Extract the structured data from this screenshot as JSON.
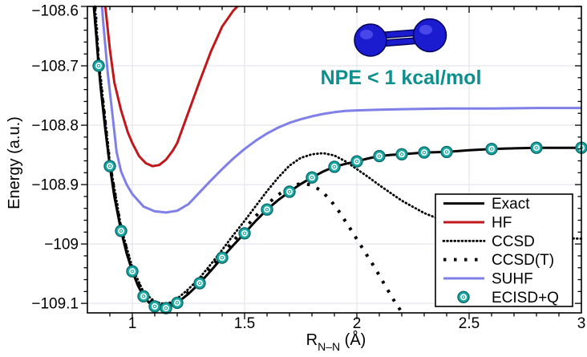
{
  "annotation": {
    "text": "NPE < 1 kcal/mol",
    "color": "#0d8f8d"
  },
  "molecule": {
    "name": "N2 molecule",
    "atom_color": "#1b1bd0",
    "atom_edge_color": "#000055",
    "highlight_color": "#5050ee",
    "bond_color": "#1b1bd0"
  },
  "chart_data": {
    "type": "line",
    "title": "",
    "xlabel": "R_N-N (A)",
    "xlabel_parts": {
      "prefix": "R",
      "sub": "N–N",
      "suffix": " (Å)"
    },
    "ylabel": "Energy (a.u.)",
    "xlim": [
      0.8,
      3.0
    ],
    "ylim": [
      -109.116,
      -108.6
    ],
    "grid": true,
    "grid_color": "#dfdfe9",
    "axis_color": "#000000",
    "background": "#ffffff",
    "legend_position": "lower right",
    "xticks": {
      "values": [
        1,
        1.5,
        2,
        2.5,
        3
      ],
      "labels": [
        "1",
        "1.5",
        "2",
        "2.5",
        "3"
      ]
    },
    "yticks": {
      "values": [
        -108.6,
        -108.7,
        -108.8,
        -108.9,
        -109,
        -109.1
      ],
      "labels": [
        "−108.6",
        "−108.7",
        "−108.8",
        "−108.9",
        "−109",
        "−109.1"
      ]
    },
    "minor_tick_step_x": 0.1,
    "minor_tick_step_y": 0.02,
    "series": [
      {
        "name": "Exact",
        "style": "solid",
        "color": "#000000",
        "width": 3,
        "z": 5,
        "points": [
          [
            0.82,
            -108.56
          ],
          [
            0.83,
            -108.607
          ],
          [
            0.84,
            -108.652
          ],
          [
            0.85,
            -108.7
          ],
          [
            0.86,
            -108.74
          ],
          [
            0.88,
            -108.808
          ],
          [
            0.9,
            -108.869
          ],
          [
            0.92,
            -108.92
          ],
          [
            0.95,
            -108.978
          ],
          [
            0.975,
            -109.016
          ],
          [
            1.0,
            -109.046
          ],
          [
            1.025,
            -109.07
          ],
          [
            1.05,
            -109.088
          ],
          [
            1.075,
            -109.099
          ],
          [
            1.1,
            -109.105
          ],
          [
            1.125,
            -109.108
          ],
          [
            1.15,
            -109.108
          ],
          [
            1.175,
            -109.104
          ],
          [
            1.2,
            -109.099
          ],
          [
            1.25,
            -109.084
          ],
          [
            1.3,
            -109.066
          ],
          [
            1.35,
            -109.045
          ],
          [
            1.4,
            -109.023
          ],
          [
            1.45,
            -109.002
          ],
          [
            1.5,
            -108.982
          ],
          [
            1.55,
            -108.961
          ],
          [
            1.6,
            -108.942
          ],
          [
            1.65,
            -108.926
          ],
          [
            1.7,
            -108.912
          ],
          [
            1.75,
            -108.899
          ],
          [
            1.8,
            -108.888
          ],
          [
            1.85,
            -108.878
          ],
          [
            1.9,
            -108.87
          ],
          [
            1.95,
            -108.865
          ],
          [
            2.0,
            -108.861
          ],
          [
            2.05,
            -108.856
          ],
          [
            2.1,
            -108.852
          ],
          [
            2.15,
            -108.85
          ],
          [
            2.2,
            -108.849
          ],
          [
            2.3,
            -108.846
          ],
          [
            2.4,
            -108.845
          ],
          [
            2.5,
            -108.842
          ],
          [
            2.6,
            -108.84
          ],
          [
            2.7,
            -108.839
          ],
          [
            2.8,
            -108.838
          ],
          [
            2.9,
            -108.838
          ],
          [
            3.0,
            -108.838
          ]
        ]
      },
      {
        "name": "HF",
        "style": "solid",
        "color": "#c0181d",
        "width": 3,
        "z": 1,
        "points": [
          [
            0.873,
            -108.56
          ],
          [
            0.88,
            -108.601
          ],
          [
            0.9,
            -108.672
          ],
          [
            0.92,
            -108.728
          ],
          [
            0.95,
            -108.775
          ],
          [
            0.98,
            -108.812
          ],
          [
            1.0,
            -108.83
          ],
          [
            1.03,
            -108.852
          ],
          [
            1.06,
            -108.864
          ],
          [
            1.09,
            -108.869
          ],
          [
            1.12,
            -108.867
          ],
          [
            1.15,
            -108.858
          ],
          [
            1.18,
            -108.843
          ],
          [
            1.2,
            -108.83
          ],
          [
            1.25,
            -108.778
          ],
          [
            1.3,
            -108.726
          ],
          [
            1.35,
            -108.676
          ],
          [
            1.4,
            -108.634
          ],
          [
            1.45,
            -108.607
          ],
          [
            1.5,
            -108.588
          ],
          [
            1.53,
            -108.578
          ]
        ]
      },
      {
        "name": "CCSD",
        "style": "dotted",
        "color": "#000000",
        "width": 2.8,
        "z": 3,
        "points": [
          [
            0.825,
            -108.56
          ],
          [
            0.84,
            -108.63
          ],
          [
            0.85,
            -108.69
          ],
          [
            0.9,
            -108.862
          ],
          [
            0.95,
            -108.972
          ],
          [
            1.0,
            -109.04
          ],
          [
            1.05,
            -109.081
          ],
          [
            1.1,
            -109.097
          ],
          [
            1.13,
            -109.1
          ],
          [
            1.16,
            -109.1
          ],
          [
            1.2,
            -109.092
          ],
          [
            1.25,
            -109.076
          ],
          [
            1.3,
            -109.057
          ],
          [
            1.35,
            -109.034
          ],
          [
            1.4,
            -109.01
          ],
          [
            1.45,
            -108.985
          ],
          [
            1.5,
            -108.961
          ],
          [
            1.55,
            -108.936
          ],
          [
            1.6,
            -108.911
          ],
          [
            1.65,
            -108.888
          ],
          [
            1.7,
            -108.868
          ],
          [
            1.75,
            -108.855
          ],
          [
            1.8,
            -108.849
          ],
          [
            1.85,
            -108.847
          ],
          [
            1.9,
            -108.851
          ],
          [
            1.95,
            -108.861
          ],
          [
            2.0,
            -108.874
          ],
          [
            2.05,
            -108.887
          ],
          [
            2.1,
            -108.901
          ],
          [
            2.15,
            -108.914
          ],
          [
            2.2,
            -108.927
          ],
          [
            2.3,
            -108.948
          ],
          [
            2.4,
            -108.963
          ],
          [
            2.5,
            -108.974
          ],
          [
            2.6,
            -108.981
          ],
          [
            2.7,
            -108.986
          ],
          [
            2.8,
            -108.989
          ],
          [
            2.9,
            -108.99
          ],
          [
            3.0,
            -108.991
          ]
        ]
      },
      {
        "name": "CCSD(T)",
        "style": "sparse-dotted",
        "color": "#000000",
        "width": 4,
        "z": 4,
        "points": [
          [
            0.827,
            -108.56
          ],
          [
            0.85,
            -108.695
          ],
          [
            0.9,
            -108.866
          ],
          [
            0.95,
            -108.975
          ],
          [
            1.0,
            -109.043
          ],
          [
            1.05,
            -109.085
          ],
          [
            1.1,
            -109.101
          ],
          [
            1.13,
            -109.104
          ],
          [
            1.16,
            -109.104
          ],
          [
            1.2,
            -109.096
          ],
          [
            1.25,
            -109.081
          ],
          [
            1.3,
            -109.062
          ],
          [
            1.35,
            -109.04
          ],
          [
            1.4,
            -109.017
          ],
          [
            1.45,
            -108.995
          ],
          [
            1.5,
            -108.974
          ],
          [
            1.55,
            -108.953
          ],
          [
            1.6,
            -108.933
          ],
          [
            1.65,
            -108.917
          ],
          [
            1.7,
            -108.905
          ],
          [
            1.73,
            -108.9
          ],
          [
            1.76,
            -108.898
          ],
          [
            1.8,
            -108.901
          ],
          [
            1.84,
            -108.91
          ],
          [
            1.88,
            -108.925
          ],
          [
            1.92,
            -108.945
          ],
          [
            1.96,
            -108.968
          ],
          [
            2.0,
            -108.992
          ],
          [
            2.04,
            -109.016
          ],
          [
            2.08,
            -109.04
          ],
          [
            2.12,
            -109.066
          ],
          [
            2.16,
            -109.092
          ],
          [
            2.2,
            -109.115
          ],
          [
            2.24,
            -109.14
          ]
        ]
      },
      {
        "name": "SUHF",
        "style": "solid",
        "color": "#7f7fe8",
        "width": 3,
        "z": 2,
        "points": [
          [
            0.857,
            -108.56
          ],
          [
            0.87,
            -108.625
          ],
          [
            0.89,
            -108.71
          ],
          [
            0.91,
            -108.777
          ],
          [
            0.93,
            -108.845
          ],
          [
            0.95,
            -108.878
          ],
          [
            0.975,
            -108.9
          ],
          [
            1.0,
            -108.916
          ],
          [
            1.05,
            -108.937
          ],
          [
            1.1,
            -108.945
          ],
          [
            1.15,
            -108.947
          ],
          [
            1.2,
            -108.944
          ],
          [
            1.25,
            -108.933
          ],
          [
            1.3,
            -108.913
          ],
          [
            1.35,
            -108.893
          ],
          [
            1.4,
            -108.874
          ],
          [
            1.45,
            -108.856
          ],
          [
            1.5,
            -108.84
          ],
          [
            1.55,
            -108.826
          ],
          [
            1.6,
            -108.814
          ],
          [
            1.65,
            -108.804
          ],
          [
            1.7,
            -108.796
          ],
          [
            1.75,
            -108.79
          ],
          [
            1.8,
            -108.785
          ],
          [
            1.85,
            -108.781
          ],
          [
            1.9,
            -108.778
          ],
          [
            1.95,
            -108.776
          ],
          [
            2.0,
            -108.775
          ],
          [
            2.1,
            -108.774
          ],
          [
            2.2,
            -108.773
          ],
          [
            2.4,
            -108.772
          ],
          [
            2.6,
            -108.772
          ],
          [
            2.8,
            -108.771
          ],
          [
            3.0,
            -108.771
          ]
        ]
      },
      {
        "name": "ECISD+Q",
        "style": "marker",
        "color": "#1aa8a5",
        "edge_color": "#0c6b69",
        "marker_radius": 7,
        "z": 6,
        "points": [
          [
            0.85,
            -108.7
          ],
          [
            0.9,
            -108.869
          ],
          [
            0.95,
            -108.978
          ],
          [
            1.0,
            -109.046
          ],
          [
            1.05,
            -109.088
          ],
          [
            1.1,
            -109.105
          ],
          [
            1.15,
            -109.108
          ],
          [
            1.2,
            -109.099
          ],
          [
            1.3,
            -109.066
          ],
          [
            1.4,
            -109.023
          ],
          [
            1.5,
            -108.982
          ],
          [
            1.6,
            -108.942
          ],
          [
            1.7,
            -108.912
          ],
          [
            1.8,
            -108.888
          ],
          [
            1.9,
            -108.87
          ],
          [
            2.0,
            -108.861
          ],
          [
            2.1,
            -108.852
          ],
          [
            2.2,
            -108.849
          ],
          [
            2.3,
            -108.846
          ],
          [
            2.4,
            -108.845
          ],
          [
            2.6,
            -108.84
          ],
          [
            2.8,
            -108.838
          ],
          [
            3.0,
            -108.838
          ]
        ]
      }
    ]
  }
}
